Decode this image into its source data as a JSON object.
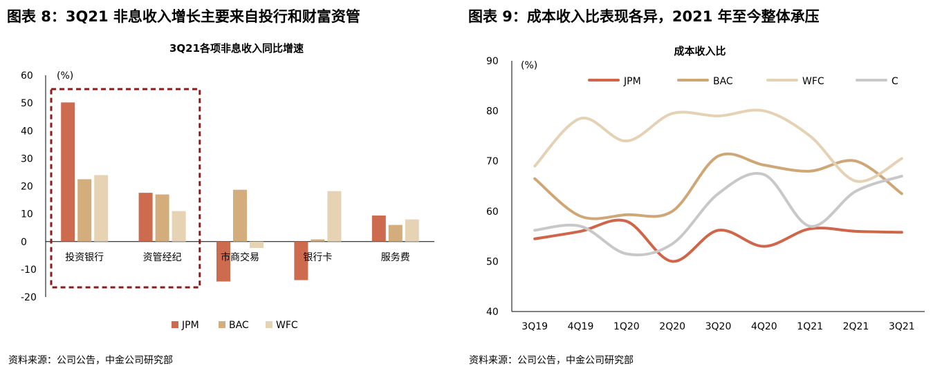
{
  "left": {
    "figure_title": "图表 8：3Q21 非息收入增长主要来自投行和财富资管",
    "source": "资料来源：公司公告，中金公司研究部"
  },
  "right": {
    "figure_title": "图表 9：成本收入比表现各异，2021 年至今整体承压",
    "source": "资料来源：公司公告，中金公司研究部"
  },
  "chart_data": [
    {
      "type": "bar",
      "title": "3Q21各项非息收入同比增速",
      "ylabel": "(%)",
      "xlabel": "",
      "ylim": [
        -20,
        60
      ],
      "yticks": [
        60,
        50,
        40,
        30,
        20,
        10,
        0,
        -10,
        -20
      ],
      "categories": [
        "投资银行",
        "资管经纪",
        "市商交易",
        "银行卡",
        "服务费"
      ],
      "series": [
        {
          "name": "JPM",
          "color": "#CC6B4E",
          "values": [
            50.2,
            17.6,
            -14.4,
            -13.9,
            9.4
          ]
        },
        {
          "name": "BAC",
          "color": "#D3AD7C",
          "values": [
            22.5,
            17.0,
            18.7,
            0.8,
            6.0
          ]
        },
        {
          "name": "WFC",
          "color": "#E6D3B4",
          "values": [
            24.0,
            11.0,
            -2.3,
            18.2,
            8.0
          ]
        }
      ],
      "highlight": {
        "categories": [
          "投资银行",
          "资管经纪"
        ],
        "style": "dashed-box",
        "color": "#8B1A1A"
      },
      "legend_position": "bottom-center",
      "grid": false
    },
    {
      "type": "line",
      "title": "成本收入比",
      "ylabel": "(%)",
      "xlabel": "",
      "ylim": [
        40,
        90
      ],
      "yticks": [
        90,
        80,
        70,
        60,
        50,
        40
      ],
      "categories": [
        "3Q19",
        "4Q19",
        "1Q20",
        "2Q20",
        "3Q20",
        "4Q20",
        "1Q21",
        "2Q21",
        "3Q21"
      ],
      "series": [
        {
          "name": "JPM",
          "color": "#D0654A",
          "values": [
            54.5,
            56.0,
            58.0,
            50.0,
            56.2,
            53.0,
            56.5,
            56.0,
            55.8
          ]
        },
        {
          "name": "BAC",
          "color": "#CFA676",
          "values": [
            66.5,
            59.0,
            59.3,
            60.0,
            71.0,
            69.2,
            68.0,
            70.0,
            63.5
          ]
        },
        {
          "name": "WFC",
          "color": "#E5D2B5",
          "values": [
            69.0,
            78.5,
            74.0,
            79.5,
            79.0,
            80.0,
            75.0,
            66.0,
            70.5
          ]
        },
        {
          "name": "C",
          "color": "#C8C8C8",
          "values": [
            56.2,
            57.0,
            51.5,
            53.5,
            63.5,
            67.3,
            57.0,
            64.0,
            67.0
          ]
        }
      ],
      "legend_position": "top",
      "grid": false
    }
  ]
}
